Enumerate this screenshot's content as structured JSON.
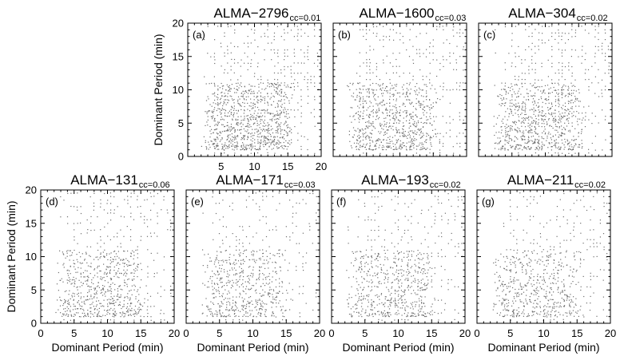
{
  "chart_data": [
    {
      "type": "scatter",
      "label": "(a)",
      "title": "ALMA−2796",
      "cc": "cc=0.01",
      "xlim": [
        0,
        20
      ],
      "ylim": [
        0,
        20
      ],
      "xticks": [
        "",
        "5",
        "10",
        "15",
        "20"
      ],
      "yticks": [
        "0",
        "5",
        "10",
        "15",
        "20"
      ],
      "ylabel": "Dominant Period (min)",
      "xlabel": "",
      "seed": 11,
      "density": 1.0
    },
    {
      "type": "scatter",
      "label": "(b)",
      "title": "ALMA−1600",
      "cc": "cc=0.03",
      "xlim": [
        0,
        20
      ],
      "ylim": [
        0,
        20
      ],
      "xticks": [
        "",
        "",
        "",
        "",
        ""
      ],
      "yticks": [
        "",
        "",
        "",
        "",
        ""
      ],
      "ylabel": "",
      "xlabel": "",
      "seed": 23,
      "density": 0.8
    },
    {
      "type": "scatter",
      "label": "(c)",
      "title": "ALMA−304",
      "cc": "cc=0.02",
      "xlim": [
        0,
        20
      ],
      "ylim": [
        0,
        20
      ],
      "xticks": [
        "",
        "",
        "",
        "",
        ""
      ],
      "yticks": [
        "",
        "",
        "",
        "",
        ""
      ],
      "ylabel": "",
      "xlabel": "",
      "seed": 37,
      "density": 0.85
    },
    {
      "type": "scatter",
      "label": "(d)",
      "title": "ALMA−131",
      "cc": "cc=0.06",
      "xlim": [
        0,
        20
      ],
      "ylim": [
        0,
        20
      ],
      "xticks": [
        "0",
        "5",
        "10",
        "15",
        "20"
      ],
      "yticks": [
        "0",
        "5",
        "10",
        "15",
        "20"
      ],
      "ylabel": "Dominant Period (min)",
      "xlabel": "Dominant Period (min)",
      "seed": 41,
      "density": 0.7
    },
    {
      "type": "scatter",
      "label": "(e)",
      "title": "ALMA−171",
      "cc": "cc=0.03",
      "xlim": [
        0,
        20
      ],
      "ylim": [
        0,
        20
      ],
      "xticks": [
        "0",
        "5",
        "10",
        "15",
        "20"
      ],
      "yticks": [
        "",
        "",
        "",
        "",
        ""
      ],
      "ylabel": "",
      "xlabel": "Dominant Period (min)",
      "seed": 53,
      "density": 0.6
    },
    {
      "type": "scatter",
      "label": "(f)",
      "title": "ALMA−193",
      "cc": "cc=0.02",
      "xlim": [
        0,
        20
      ],
      "ylim": [
        0,
        20
      ],
      "xticks": [
        "0",
        "5",
        "10",
        "15",
        "20"
      ],
      "yticks": [
        "",
        "",
        "",
        "",
        ""
      ],
      "ylabel": "",
      "xlabel": "Dominant Period (min)",
      "seed": 67,
      "density": 0.6
    },
    {
      "type": "scatter",
      "label": "(g)",
      "title": "ALMA−211",
      "cc": "cc=0.02",
      "xlim": [
        0,
        20
      ],
      "ylim": [
        0,
        20
      ],
      "xticks": [
        "0",
        "5",
        "10",
        "15",
        "20"
      ],
      "yticks": [
        "",
        "",
        "",
        "",
        ""
      ],
      "ylabel": "",
      "xlabel": "Dominant Period (min)",
      "seed": 79,
      "density": 0.6
    }
  ],
  "colors": {
    "points": "#6e6e6e",
    "axes": "#000000",
    "background": "#ffffff"
  }
}
